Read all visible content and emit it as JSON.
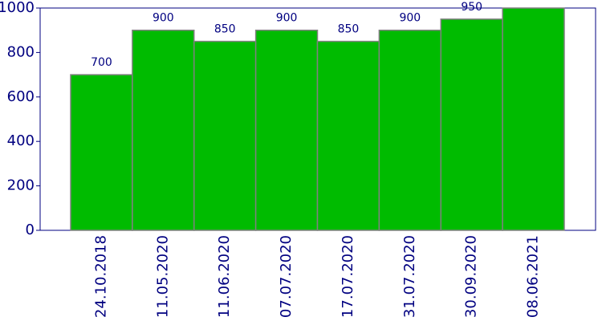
{
  "chart_data": {
    "type": "bar",
    "categories": [
      "24.10.2018",
      "11.05.2020",
      "11.06.2020",
      "07.07.2020",
      "17.07.2020",
      "31.07.2020",
      "30.09.2020",
      "08.06.2021"
    ],
    "values": [
      700,
      900,
      850,
      900,
      850,
      900,
      950,
      1000
    ],
    "color": "#00bb00",
    "ylim": [
      0,
      1000
    ],
    "yticks": [
      0,
      200,
      400,
      600,
      800,
      1000
    ],
    "grid": false
  }
}
